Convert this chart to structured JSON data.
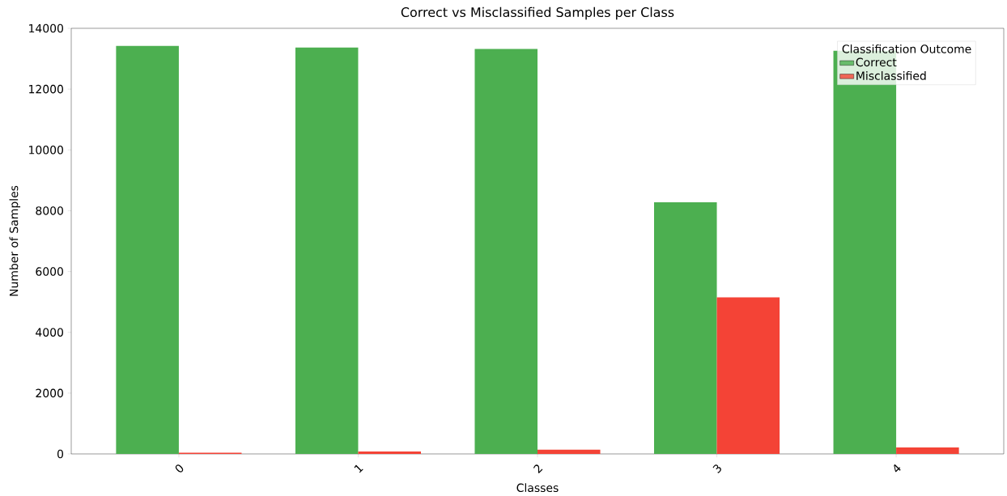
{
  "chart_data": {
    "type": "bar",
    "title": "Correct vs Misclassified Samples per Class",
    "xlabel": "Classes",
    "ylabel": "Number of Samples",
    "legend_title": "Classification Outcome",
    "categories": [
      "0",
      "1",
      "2",
      "3",
      "4"
    ],
    "series": [
      {
        "name": "Correct",
        "color": "#4caf50",
        "values": [
          13420,
          13370,
          13320,
          8280,
          13260
        ]
      },
      {
        "name": "Misclassified",
        "color": "#f44336",
        "values": [
          40,
          80,
          140,
          5150,
          210
        ]
      }
    ],
    "ylim": [
      0,
      14000
    ],
    "yticks": [
      0,
      2000,
      4000,
      6000,
      8000,
      10000,
      12000,
      14000
    ],
    "grid": false,
    "legend": "top right"
  }
}
